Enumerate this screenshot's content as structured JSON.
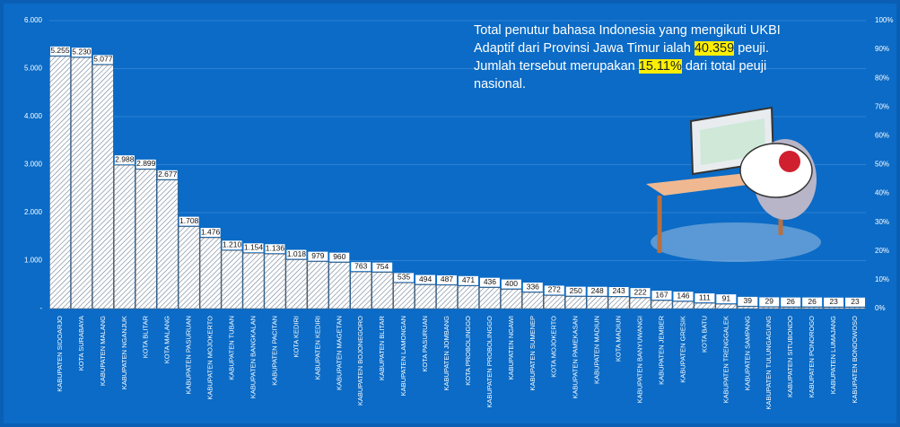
{
  "chart_data": {
    "type": "bar",
    "categories": [
      "KABUPATEN SIDOARJO",
      "KOTA SURABAYA",
      "KABUPATEN MALANG",
      "KABUPATEN NGANJUK",
      "KOTA BLITAR",
      "KOTA MALANG",
      "KABUPATEN PASURUAN",
      "KABUPATEN MOJOKERTO",
      "KABUPATEN TUBAN",
      "KABUPATEN BANGKALAN",
      "KABUPATEN PACITAN",
      "KOTA KEDIRI",
      "KABUPATEN KEDIRI",
      "KABUPATEN MAGETAN",
      "KABUPATEN BOJONEGORO",
      "KABUPATEN BLITAR",
      "KABUPATEN LAMONGAN",
      "KOTA PASURUAN",
      "KABUPATEN JOMBANG",
      "KOTA PROBOLINGGO",
      "KABUPATEN PROBOLINGGO",
      "KABUPATEN NGAWI",
      "KABUPATEN SUMENEP",
      "KOTA MOJOKERTO",
      "KABUPATEN PAMEKASAN",
      "KABUPATEN MADIUN",
      "KOTA MADIUN",
      "KABUPATEN BANYUWANGI",
      "KABUPATEN JEMBER",
      "KABUPATEN GRESIK",
      "KOTA BATU",
      "KABUPATEN TRENGGALEK",
      "KABUPATEN SAMPANG",
      "KABUPATEN TULUNGAGUNG",
      "KABUPATEN SITUBONDO",
      "KABUPATEN PONOROGO",
      "KABUPATEN LUMAJANG",
      "KABUPATEN BONDOWOSO"
    ],
    "values": [
      5255,
      5230,
      5077,
      2988,
      2899,
      2677,
      1708,
      1476,
      1210,
      1154,
      1136,
      1018,
      979,
      960,
      763,
      754,
      535,
      494,
      487,
      471,
      436,
      400,
      336,
      272,
      250,
      248,
      243,
      222,
      167,
      146,
      111,
      91,
      39,
      29,
      26,
      26,
      23,
      23
    ],
    "value_labels": [
      "5.255",
      "5.230",
      "5.077",
      "2.988",
      "2.899",
      "2.677",
      "1.708",
      "1.476",
      "1.210",
      "1.154",
      "1.136",
      "1.018",
      "979",
      "960",
      "763",
      "754",
      "535",
      "494",
      "487",
      "471",
      "436",
      "400",
      "336",
      "272",
      "250",
      "248",
      "243",
      "222",
      "167",
      "146",
      "111",
      "91",
      "39",
      "29",
      "26",
      "26",
      "23",
      "23"
    ],
    "color": "#ffffff",
    "ylim": [
      0,
      6000
    ],
    "yticks": [
      {
        "value": 0,
        "label": "-"
      },
      {
        "value": 1000,
        "label": "1.000"
      },
      {
        "value": 2000,
        "label": "2.000"
      },
      {
        "value": 3000,
        "label": "3.000"
      },
      {
        "value": 4000,
        "label": "4.000"
      },
      {
        "value": 5000,
        "label": "5.000"
      },
      {
        "value": 6000,
        "label": "6.000"
      }
    ],
    "y2lim": [
      0,
      100
    ],
    "y2ticks": [
      {
        "value": 0,
        "label": "0%"
      },
      {
        "value": 10,
        "label": "10%"
      },
      {
        "value": 20,
        "label": "20%"
      },
      {
        "value": 30,
        "label": "30%"
      },
      {
        "value": 40,
        "label": "40%"
      },
      {
        "value": 50,
        "label": "50%"
      },
      {
        "value": 60,
        "label": "60%"
      },
      {
        "value": 70,
        "label": "70%"
      },
      {
        "value": 80,
        "label": "80%"
      },
      {
        "value": 90,
        "label": "90%"
      },
      {
        "value": 100,
        "label": "100%"
      }
    ],
    "grid": true,
    "annotation": [
      {
        "text": "Total penutur bahasa Indonesia yang mengikuti UKBI Adaptif dari Provinsi Jawa Timur ialah ",
        "highlight": false
      },
      {
        "text": "40.359",
        "highlight": true
      },
      {
        "text": " peuji. Jumlah tersebut merupakan ",
        "highlight": false
      },
      {
        "text": "15.11%",
        "highlight": true
      },
      {
        "text": " dari total peuji nasional.",
        "highlight": false
      }
    ]
  }
}
